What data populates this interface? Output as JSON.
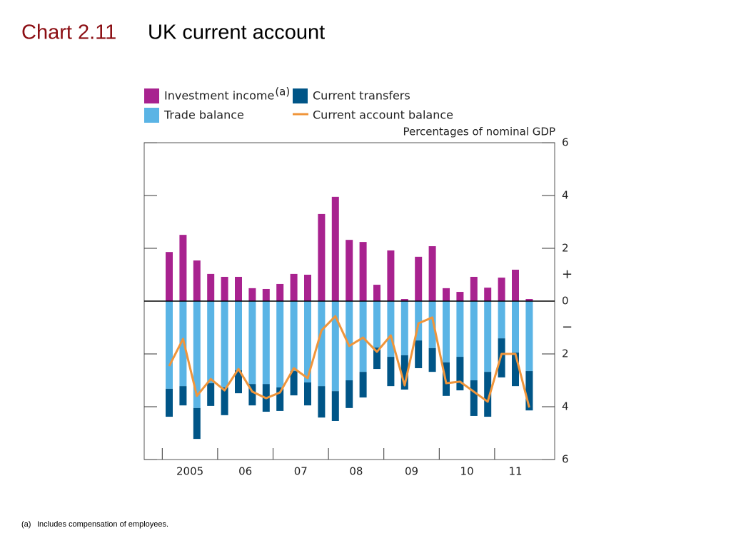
{
  "chart_data": {
    "type": "bar",
    "chart_number": "Chart 2.11",
    "title": "UK current account",
    "footnote_marker": "(a)",
    "footnote": "Includes compensation of employees.",
    "y_axis_label": "Percentages of nominal GDP",
    "sign_labels": [
      "+",
      "−"
    ],
    "year_labels": [
      "2005",
      "06",
      "07",
      "08",
      "09",
      "10",
      "11"
    ],
    "categories": [
      null,
      null,
      null,
      null,
      null,
      null,
      null,
      null,
      null,
      null,
      null,
      null,
      null,
      null,
      null,
      null,
      null,
      null,
      null,
      null,
      null,
      null,
      null,
      null,
      null,
      null,
      null
    ],
    "series": [
      {
        "name": "Investment income",
        "type": "bar",
        "color": "#a8228f",
        "values": [
          1.86,
          2.51,
          1.54,
          1.03,
          0.92,
          0.92,
          0.49,
          0.46,
          0.65,
          1.03,
          1.0,
          3.3,
          3.95,
          2.32,
          2.24,
          0.62,
          1.92,
          0.08,
          1.68,
          2.08,
          0.49,
          0.35,
          0.92,
          0.51,
          0.89,
          1.19,
          0.08
        ]
      },
      {
        "name": "Trade balance",
        "type": "bar",
        "color": "#5ab4e5",
        "values": [
          -3.32,
          -3.22,
          -4.05,
          -3.11,
          -3.27,
          -2.62,
          -3.14,
          -3.14,
          -3.27,
          -2.65,
          -3.08,
          -3.22,
          -3.41,
          -3.0,
          -2.68,
          -1.76,
          -2.11,
          -2.05,
          -1.49,
          -1.78,
          -2.32,
          -2.11,
          -3.0,
          -2.68,
          -1.41,
          -1.95,
          -2.65
        ]
      },
      {
        "name": "Current transfers",
        "type": "bar",
        "color": "#005587",
        "values": [
          -1.06,
          -0.73,
          -1.17,
          -0.86,
          -1.05,
          -0.87,
          -0.81,
          -1.05,
          -0.89,
          -0.92,
          -0.87,
          -1.19,
          -1.13,
          -1.05,
          -0.97,
          -0.81,
          -1.11,
          -1.3,
          -1.05,
          -0.9,
          -1.27,
          -1.27,
          -1.35,
          -1.7,
          -1.48,
          -1.27,
          -1.49
        ]
      },
      {
        "name": "Current account balance",
        "type": "line",
        "color": "#f0953a",
        "values": [
          -2.46,
          -1.43,
          -3.59,
          -2.95,
          -3.38,
          -2.57,
          -3.43,
          -3.68,
          -3.46,
          -2.54,
          -2.92,
          -1.11,
          -0.57,
          -1.7,
          -1.38,
          -1.92,
          -1.3,
          -3.19,
          -0.84,
          -0.62,
          -3.11,
          -3.05,
          -3.43,
          -3.81,
          -2.0,
          -2.0,
          -4.03
        ]
      }
    ],
    "ylim": [
      -6,
      6
    ],
    "yticks": [
      6,
      4,
      2,
      0,
      {
        "value": -2,
        "label": "2"
      },
      {
        "value": -4,
        "label": "4"
      },
      {
        "value": -6,
        "label": "6"
      }
    ]
  }
}
